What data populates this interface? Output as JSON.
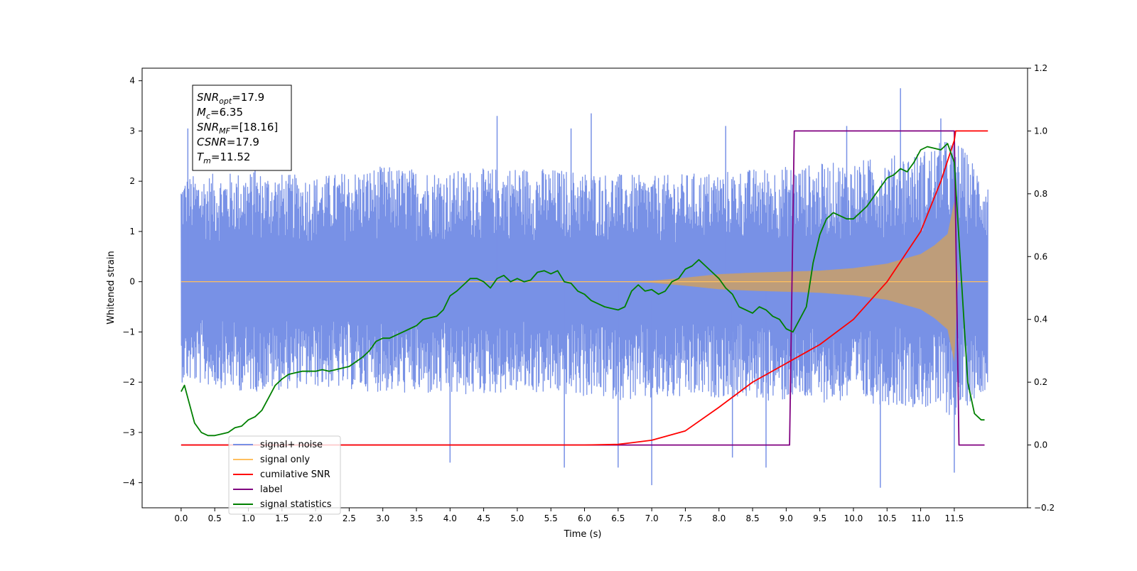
{
  "chart_data": {
    "type": "line",
    "xlabel": "Time (s)",
    "ylabel_left": "Whitened strain",
    "ylim_left": [
      -4.5,
      4.25
    ],
    "ylim_right": [
      -0.2,
      1.2
    ],
    "xlim": [
      -0.58,
      12.59
    ],
    "x_ticks": [
      0.0,
      0.5,
      1.0,
      1.5,
      2.0,
      2.5,
      3.0,
      3.5,
      4.0,
      4.5,
      5.0,
      5.5,
      6.0,
      6.5,
      7.0,
      7.5,
      8.0,
      8.5,
      9.0,
      9.5,
      10.0,
      10.5,
      11.0,
      11.5
    ],
    "x_tick_labels": [
      "0.0",
      "0.5",
      "1.0",
      "1.5",
      "2.0",
      "2.5",
      "3.0",
      "3.5",
      "4.0",
      "4.5",
      "5.0",
      "5.5",
      "6.0",
      "6.5",
      "7.0",
      "7.5",
      "8.0",
      "8.5",
      "9.0",
      "9.5",
      "10.0",
      "10.5",
      "11.0",
      "11.5"
    ],
    "y_ticks_left": [
      -4,
      -3,
      -2,
      -1,
      0,
      1,
      2,
      3,
      4
    ],
    "y_tick_labels_left": [
      "−4",
      "−3",
      "−2",
      "−1",
      "0",
      "1",
      "2",
      "3",
      "4"
    ],
    "y_ticks_right": [
      -0.2,
      0.0,
      0.2,
      0.4,
      0.6,
      0.8,
      1.0,
      1.2
    ],
    "y_tick_labels_right": [
      "−0.2",
      "0.0",
      "0.2",
      "0.4",
      "0.6",
      "0.8",
      "1.0",
      "1.2"
    ],
    "annotation": [
      {
        "base": "SNR",
        "sub": "opt",
        "rest": "=17.9"
      },
      {
        "base": "M",
        "sub": "c",
        "rest": "=6.35"
      },
      {
        "base": "SNR",
        "sub": "MF",
        "rest": "=[18.16]"
      },
      {
        "base": "CSNR",
        "sub": "",
        "rest": "=17.9"
      },
      {
        "base": "T",
        "sub": "m",
        "rest": "=11.52"
      }
    ],
    "legend_position": "lower-left",
    "legend": [
      {
        "label": "signal+ noise",
        "color": "#7891e6"
      },
      {
        "label": "signal only",
        "color": "#ffbf5f"
      },
      {
        "label": "cumilative SNR",
        "color": "#ff0000"
      },
      {
        "label": "label",
        "color": "#800080"
      },
      {
        "label": "signal statistics",
        "color": "#008000"
      }
    ],
    "series": [
      {
        "name": "signal+ noise",
        "axis": "left",
        "color": "#7891e6",
        "x_range": [
          0.0,
          12.0
        ],
        "envelope": {
          "x": [
            0.0,
            1.0,
            2.0,
            3.0,
            4.0,
            5.0,
            6.0,
            7.0,
            8.0,
            9.0,
            10.0,
            11.0,
            11.5,
            12.0
          ],
          "upper": [
            2.1,
            2.2,
            2.1,
            2.3,
            2.2,
            2.3,
            2.2,
            2.1,
            2.2,
            2.3,
            2.4,
            2.6,
            2.9,
            2.0
          ],
          "lower": [
            -2.0,
            -2.2,
            -2.1,
            -2.2,
            -2.3,
            -2.2,
            -2.3,
            -2.4,
            -2.3,
            -2.4,
            -2.4,
            -2.5,
            -2.7,
            -2.1
          ]
        },
        "peaks": [
          {
            "x": 0.1,
            "y": 3.05
          },
          {
            "x": 1.1,
            "y": 2.9
          },
          {
            "x": 4.7,
            "y": 3.3
          },
          {
            "x": 5.8,
            "y": 3.05
          },
          {
            "x": 6.1,
            "y": 3.35
          },
          {
            "x": 8.1,
            "y": 3.1
          },
          {
            "x": 9.9,
            "y": 3.1
          },
          {
            "x": 10.7,
            "y": 3.85
          },
          {
            "x": 11.3,
            "y": 3.25
          },
          {
            "x": 4.0,
            "y": -3.6
          },
          {
            "x": 5.7,
            "y": -3.7
          },
          {
            "x": 6.5,
            "y": -3.7
          },
          {
            "x": 7.0,
            "y": -4.05
          },
          {
            "x": 8.2,
            "y": -3.5
          },
          {
            "x": 8.7,
            "y": -3.7
          },
          {
            "x": 10.4,
            "y": -4.1
          },
          {
            "x": 11.5,
            "y": -3.8
          }
        ]
      },
      {
        "name": "signal only",
        "axis": "left",
        "color": "#ffbf5f",
        "amplitude": {
          "x": [
            0.0,
            6.5,
            7.0,
            7.5,
            8.0,
            8.5,
            9.0,
            9.5,
            10.0,
            10.5,
            11.0,
            11.2,
            11.4,
            11.5,
            11.55,
            12.0
          ],
          "y": [
            0.0,
            0.0,
            0.02,
            0.08,
            0.15,
            0.18,
            0.2,
            0.22,
            0.27,
            0.36,
            0.55,
            0.72,
            0.95,
            1.6,
            0.0,
            0.0
          ]
        }
      },
      {
        "name": "cumilative SNR",
        "axis": "right",
        "color": "#ff0000",
        "x": [
          0.0,
          6.0,
          6.5,
          7.0,
          7.5,
          8.0,
          8.5,
          9.0,
          9.5,
          10.0,
          10.5,
          11.0,
          11.3,
          11.5,
          11.52,
          11.6,
          11.8,
          12.0
        ],
        "values": [
          0.0,
          0.0,
          0.002,
          0.015,
          0.045,
          0.12,
          0.2,
          0.26,
          0.32,
          0.4,
          0.52,
          0.68,
          0.84,
          0.97,
          1.0,
          1.0,
          1.0,
          1.0
        ]
      },
      {
        "name": "label",
        "axis": "right",
        "color": "#800080",
        "x": [
          0.0,
          9.05,
          9.12,
          11.5,
          11.57,
          11.95
        ],
        "values": [
          0.0,
          0.0,
          1.0,
          1.0,
          0.0,
          0.0
        ]
      },
      {
        "name": "signal statistics",
        "axis": "right",
        "color": "#008000",
        "x": [
          0.0,
          0.05,
          0.1,
          0.2,
          0.3,
          0.4,
          0.5,
          0.6,
          0.7,
          0.8,
          0.9,
          1.0,
          1.1,
          1.2,
          1.3,
          1.4,
          1.5,
          1.6,
          1.7,
          1.8,
          1.9,
          2.0,
          2.1,
          2.2,
          2.3,
          2.4,
          2.5,
          2.6,
          2.7,
          2.8,
          2.9,
          3.0,
          3.1,
          3.2,
          3.3,
          3.4,
          3.5,
          3.6,
          3.7,
          3.8,
          3.9,
          4.0,
          4.1,
          4.2,
          4.3,
          4.4,
          4.5,
          4.6,
          4.7,
          4.8,
          4.9,
          5.0,
          5.1,
          5.2,
          5.3,
          5.4,
          5.5,
          5.6,
          5.7,
          5.8,
          5.9,
          6.0,
          6.1,
          6.2,
          6.3,
          6.4,
          6.5,
          6.6,
          6.7,
          6.8,
          6.9,
          7.0,
          7.1,
          7.2,
          7.3,
          7.4,
          7.5,
          7.6,
          7.7,
          7.8,
          7.9,
          8.0,
          8.1,
          8.2,
          8.3,
          8.4,
          8.5,
          8.6,
          8.7,
          8.8,
          8.9,
          9.0,
          9.1,
          9.2,
          9.3,
          9.4,
          9.5,
          9.6,
          9.7,
          9.8,
          9.9,
          10.0,
          10.1,
          10.2,
          10.3,
          10.4,
          10.5,
          10.6,
          10.7,
          10.8,
          10.9,
          11.0,
          11.1,
          11.2,
          11.3,
          11.4,
          11.5,
          11.6,
          11.7,
          11.8,
          11.9,
          11.95
        ],
        "values": [
          0.17,
          0.19,
          0.15,
          0.07,
          0.04,
          0.03,
          0.03,
          0.035,
          0.04,
          0.055,
          0.06,
          0.08,
          0.09,
          0.11,
          0.15,
          0.19,
          0.21,
          0.225,
          0.23,
          0.235,
          0.235,
          0.235,
          0.24,
          0.235,
          0.24,
          0.245,
          0.25,
          0.265,
          0.28,
          0.3,
          0.33,
          0.34,
          0.34,
          0.35,
          0.36,
          0.37,
          0.38,
          0.4,
          0.405,
          0.41,
          0.43,
          0.475,
          0.49,
          0.51,
          0.53,
          0.53,
          0.52,
          0.5,
          0.53,
          0.54,
          0.52,
          0.53,
          0.52,
          0.525,
          0.55,
          0.555,
          0.545,
          0.555,
          0.52,
          0.515,
          0.49,
          0.48,
          0.46,
          0.45,
          0.44,
          0.435,
          0.43,
          0.44,
          0.49,
          0.51,
          0.49,
          0.495,
          0.48,
          0.49,
          0.52,
          0.53,
          0.56,
          0.57,
          0.59,
          0.57,
          0.55,
          0.53,
          0.5,
          0.48,
          0.44,
          0.43,
          0.42,
          0.44,
          0.43,
          0.41,
          0.4,
          0.37,
          0.36,
          0.4,
          0.44,
          0.58,
          0.67,
          0.72,
          0.74,
          0.73,
          0.72,
          0.72,
          0.74,
          0.76,
          0.79,
          0.82,
          0.85,
          0.86,
          0.88,
          0.87,
          0.9,
          0.94,
          0.95,
          0.945,
          0.94,
          0.96,
          0.9,
          0.55,
          0.2,
          0.1,
          0.08,
          0.08
        ]
      }
    ]
  }
}
